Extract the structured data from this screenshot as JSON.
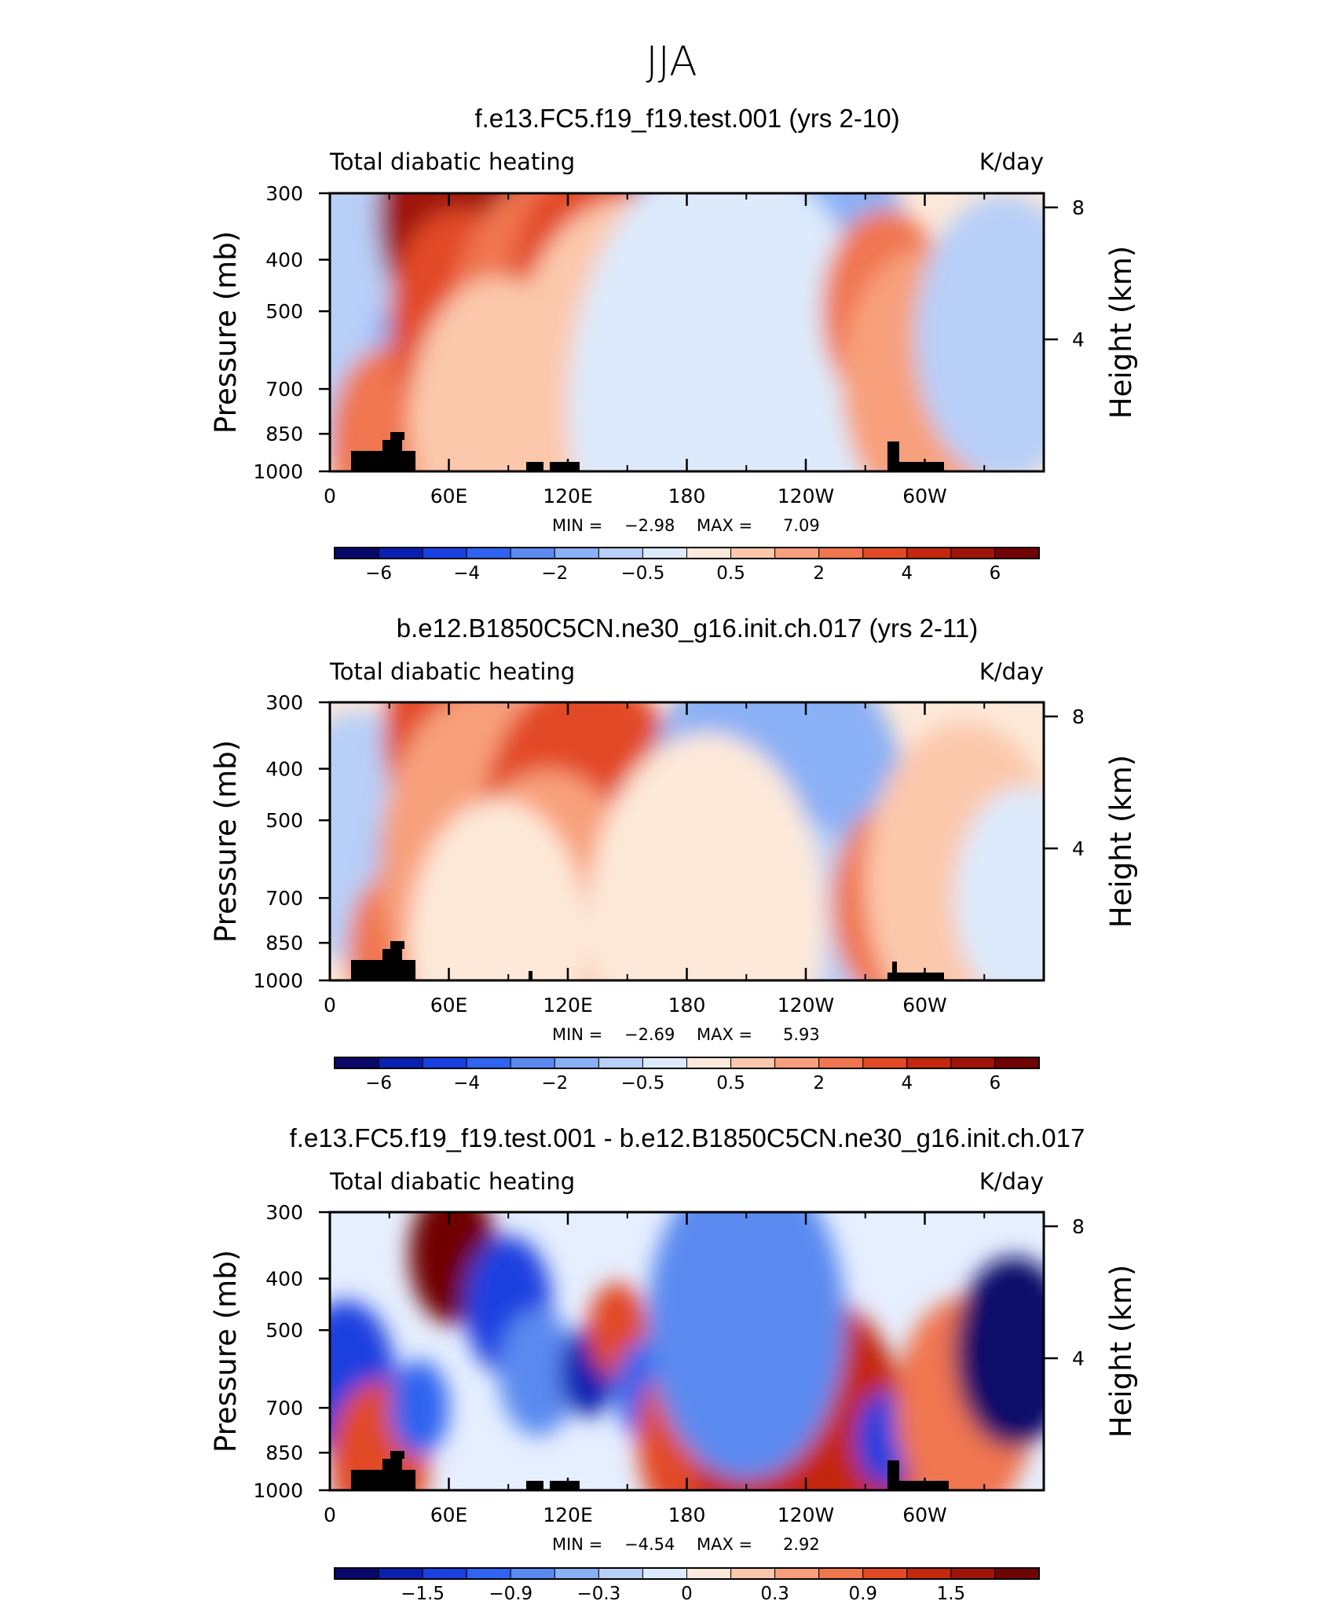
{
  "figure_title": "JJA",
  "colors": {
    "absolute_scale": [
      "#08086b",
      "#0a20b0",
      "#1a40e0",
      "#2f63f0",
      "#5a8af0",
      "#8ab0f5",
      "#b8cff8",
      "#ddeafb",
      "#fde9d9",
      "#fcc8ac",
      "#f8a07c",
      "#f0764f",
      "#e24a26",
      "#c4280e",
      "#9e1408",
      "#700404"
    ],
    "diff_scale": [
      "#08086b",
      "#0a20b0",
      "#1a40e0",
      "#2f63f0",
      "#5a8af0",
      "#8ab0f5",
      "#b8cff8",
      "#ddeafb",
      "#fde9d9",
      "#fcc8ac",
      "#f8a07c",
      "#f0764f",
      "#e24a26",
      "#c4280e",
      "#9e1408",
      "#700404"
    ],
    "topography": "#000000"
  },
  "chart_data": [
    {
      "type": "heatmap",
      "title": "f.e13.FC5.f19_f19.test.001 (yrs 2-10)",
      "left_string": "Total diabatic heating",
      "right_string": "K/day",
      "xlabel": "",
      "ylabel": "Pressure (mb)",
      "ylabel_right": "Height (km)",
      "x_ticks": [
        "0",
        "60E",
        "120E",
        "180",
        "120W",
        "60W"
      ],
      "y_ticks": [
        "300",
        "400",
        "500",
        "700",
        "850",
        "1000"
      ],
      "y_ticks_right": [
        "8",
        "4"
      ],
      "ylim": [
        1000,
        300
      ],
      "min_label": "MIN =",
      "min_value": "−2.98",
      "max_label": "MAX =",
      "max_value": "7.09",
      "colorbar_labels": [
        "−6",
        "−4",
        "−2",
        "−0.5",
        "0.5",
        "2",
        "4",
        "6"
      ],
      "field": [
        {
          "lon": 10,
          "p": 520,
          "value": -1.2,
          "r": 45
        },
        {
          "lon": 35,
          "p": 580,
          "value": -2.0,
          "r": 14
        },
        {
          "lon": 30,
          "p": 880,
          "value": 2.5,
          "r": 30
        },
        {
          "lon": 62,
          "p": 330,
          "value": 6.0,
          "r": 38
        },
        {
          "lon": 65,
          "p": 520,
          "value": 3.5,
          "r": 35
        },
        {
          "lon": 110,
          "p": 560,
          "value": 2.5,
          "r": 50
        },
        {
          "lon": 145,
          "p": 500,
          "value": 4.0,
          "r": 55
        },
        {
          "lon": 150,
          "p": 700,
          "value": 1.0,
          "r": 60
        },
        {
          "lon": 85,
          "p": 800,
          "value": 0.6,
          "r": 45
        },
        {
          "lon": 220,
          "p": 560,
          "value": -2.0,
          "r": 80
        },
        {
          "lon": 200,
          "p": 760,
          "value": -0.8,
          "r": 80
        },
        {
          "lon": 280,
          "p": 500,
          "value": 3.0,
          "r": 32
        },
        {
          "lon": 300,
          "p": 680,
          "value": 2.0,
          "r": 42
        },
        {
          "lon": 340,
          "p": 560,
          "value": -1.8,
          "r": 45
        }
      ]
    },
    {
      "type": "heatmap",
      "title": "b.e12.B1850C5CN.ne30_g16.init.ch.017 (yrs 2-11)",
      "left_string": "Total diabatic heating",
      "right_string": "K/day",
      "xlabel": "",
      "ylabel": "Pressure (mb)",
      "ylabel_right": "Height (km)",
      "x_ticks": [
        "0",
        "60E",
        "120E",
        "180",
        "120W",
        "60W"
      ],
      "y_ticks": [
        "300",
        "400",
        "500",
        "700",
        "850",
        "1000"
      ],
      "y_ticks_right": [
        "8",
        "4"
      ],
      "ylim": [
        1000,
        300
      ],
      "min_label": "MIN =",
      "min_value": "−2.69",
      "max_label": "MAX =",
      "max_value": "5.93",
      "colorbar_labels": [
        "−6",
        "−4",
        "−2",
        "−0.5",
        "0.5",
        "2",
        "4",
        "6"
      ],
      "field": [
        {
          "lon": 15,
          "p": 540,
          "value": -1.4,
          "r": 40
        },
        {
          "lon": 38,
          "p": 580,
          "value": -2.0,
          "r": 16
        },
        {
          "lon": 35,
          "p": 880,
          "value": 3.0,
          "r": 26
        },
        {
          "lon": 62,
          "p": 350,
          "value": 3.5,
          "r": 35
        },
        {
          "lon": 80,
          "p": 600,
          "value": 2.0,
          "r": 55
        },
        {
          "lon": 130,
          "p": 560,
          "value": 4.0,
          "r": 55
        },
        {
          "lon": 110,
          "p": 800,
          "value": 1.5,
          "r": 50
        },
        {
          "lon": 85,
          "p": 850,
          "value": 0.3,
          "r": 45
        },
        {
          "lon": 225,
          "p": 580,
          "value": -2.0,
          "r": 70
        },
        {
          "lon": 240,
          "p": 880,
          "value": -1.5,
          "r": 40
        },
        {
          "lon": 190,
          "p": 780,
          "value": -0.4,
          "r": 60
        },
        {
          "lon": 285,
          "p": 720,
          "value": 2.5,
          "r": 32
        },
        {
          "lon": 320,
          "p": 650,
          "value": 1.0,
          "r": 50
        },
        {
          "lon": 350,
          "p": 700,
          "value": -0.6,
          "r": 35
        }
      ]
    },
    {
      "type": "heatmap",
      "title": "f.e13.FC5.f19_f19.test.001 - b.e12.B1850C5CN.ne30_g16.init.ch.017",
      "left_string": "Total diabatic heating",
      "right_string": "K/day",
      "xlabel": "",
      "ylabel": "Pressure (mb)",
      "ylabel_right": "Height (km)",
      "x_ticks": [
        "0",
        "60E",
        "120E",
        "180",
        "120W",
        "60W"
      ],
      "y_ticks": [
        "300",
        "400",
        "500",
        "700",
        "850",
        "1000"
      ],
      "y_ticks_right": [
        "8",
        "4"
      ],
      "ylim": [
        1000,
        300
      ],
      "min_label": "MIN =",
      "min_value": "−4.54",
      "max_label": "MAX =",
      "max_value": "2.92",
      "colorbar_labels": [
        "−1.5",
        "−0.9",
        "−0.3",
        "0",
        "0.3",
        "0.9",
        "1.5"
      ],
      "field": [
        {
          "lon": 8,
          "p": 620,
          "value": -1.5,
          "r": 25
        },
        {
          "lon": 25,
          "p": 880,
          "value": 1.5,
          "r": 25
        },
        {
          "lon": 45,
          "p": 700,
          "value": -1.2,
          "r": 15
        },
        {
          "lon": 62,
          "p": 360,
          "value": 2.5,
          "r": 22
        },
        {
          "lon": 90,
          "p": 450,
          "value": -1.5,
          "r": 22
        },
        {
          "lon": 105,
          "p": 600,
          "value": -1.0,
          "r": 20
        },
        {
          "lon": 130,
          "p": 600,
          "value": -2.0,
          "r": 14
        },
        {
          "lon": 145,
          "p": 500,
          "value": 1.5,
          "r": 15
        },
        {
          "lon": 160,
          "p": 650,
          "value": -1.2,
          "r": 16
        },
        {
          "lon": 185,
          "p": 800,
          "value": 1.5,
          "r": 30
        },
        {
          "lon": 240,
          "p": 900,
          "value": 1.8,
          "r": 55
        },
        {
          "lon": 210,
          "p": 480,
          "value": -1.0,
          "r": 50
        },
        {
          "lon": 280,
          "p": 800,
          "value": -1.5,
          "r": 15
        },
        {
          "lon": 320,
          "p": 700,
          "value": 1.0,
          "r": 35
        },
        {
          "lon": 345,
          "p": 550,
          "value": -3.0,
          "r": 30
        }
      ]
    }
  ]
}
